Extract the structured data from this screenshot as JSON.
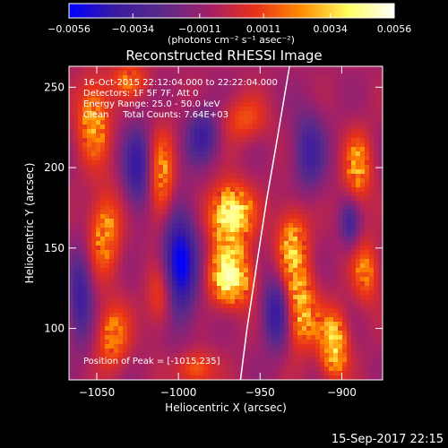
{
  "chart_data": {
    "type": "heatmap",
    "title": "Reconstructed RHESSI Image",
    "xlabel": "Heliocentric X (arcsec)",
    "ylabel": "Heliocentric Y (arcsec)",
    "xlim": [
      -1067,
      -875
    ],
    "ylim": [
      68,
      263
    ],
    "xticks": [
      -1050,
      -1000,
      -950,
      -900
    ],
    "xtick_labels": [
      "−1050",
      "−1000",
      "−950",
      "−900"
    ],
    "yticks": [
      100,
      150,
      200,
      250
    ],
    "ytick_labels": [
      "100",
      "150",
      "200",
      "250"
    ],
    "colorbar": {
      "range": [
        -0.0056,
        0.0056
      ],
      "ticks": [
        -0.0056,
        -0.0034,
        -0.0011,
        0.0011,
        0.0034,
        0.0056
      ],
      "tick_labels": [
        "−0.0056",
        "−0.0034",
        "−0.0011",
        "0.0011",
        "0.0034",
        "0.0056"
      ],
      "units_label": "(photons cm⁻² s⁻¹ asec⁻²)",
      "colormap": [
        "#0000ff",
        "#3a1aa0",
        "#5a2a8a",
        "#a0206a",
        "#e8301a",
        "#ff8c00",
        "#ffff60",
        "#ffffff"
      ]
    },
    "info_lines": [
      "16-Oct-2015 22:12:04.000 to 22:22:04.000",
      "Detectors: 1F 5F 7F, Att 0",
      "Energy Range: 25.0 - 50.0 keV",
      "Clean     Total Counts: 7.64E+03"
    ],
    "peak_label": "Position of Peak = [-1015,235]",
    "peak": {
      "x": -1015,
      "y": 235
    },
    "limb_curve": [
      [
        -962,
        68
      ],
      [
        -958,
        100
      ],
      [
        -952,
        140
      ],
      [
        -946,
        180
      ],
      [
        -940,
        215
      ],
      [
        -932,
        263
      ]
    ],
    "sources": [
      {
        "x": -968,
        "y": 170,
        "sx": 9,
        "sy": 13,
        "amp": 1.0
      },
      {
        "x": -968,
        "y": 132,
        "sx": 9,
        "sy": 12,
        "amp": 0.95
      },
      {
        "x": -1010,
        "y": 190,
        "sx": 6,
        "sy": 22,
        "amp": 0.55
      },
      {
        "x": -1010,
        "y": 120,
        "sx": 6,
        "sy": 15,
        "amp": 0.5
      },
      {
        "x": -1052,
        "y": 230,
        "sx": 7,
        "sy": 18,
        "amp": 0.6
      },
      {
        "x": -1045,
        "y": 160,
        "sx": 7,
        "sy": 18,
        "amp": 0.55
      },
      {
        "x": -1040,
        "y": 95,
        "sx": 7,
        "sy": 14,
        "amp": 0.5
      },
      {
        "x": -930,
        "y": 150,
        "sx": 7,
        "sy": 18,
        "amp": 0.6
      },
      {
        "x": -925,
        "y": 110,
        "sx": 7,
        "sy": 16,
        "amp": 0.65
      },
      {
        "x": -905,
        "y": 90,
        "sx": 6,
        "sy": 14,
        "amp": 0.8
      },
      {
        "x": -890,
        "y": 200,
        "sx": 6,
        "sy": 15,
        "amp": 0.55
      },
      {
        "x": -885,
        "y": 135,
        "sx": 6,
        "sy": 14,
        "amp": 0.45
      },
      {
        "x": -990,
        "y": 75,
        "sx": 8,
        "sy": 8,
        "amp": 0.45
      },
      {
        "x": -960,
        "y": 230,
        "sx": 10,
        "sy": 10,
        "amp": 0.35
      },
      {
        "x": -1030,
        "y": 255,
        "sx": 8,
        "sy": 8,
        "amp": 0.4
      }
    ],
    "negatives": [
      {
        "x": -1000,
        "y": 140,
        "sx": 8,
        "sy": 25,
        "amp": 0.9
      },
      {
        "x": -1025,
        "y": 200,
        "sx": 6,
        "sy": 18,
        "amp": 0.6
      },
      {
        "x": -985,
        "y": 220,
        "sx": 7,
        "sy": 12,
        "amp": 0.55
      },
      {
        "x": -940,
        "y": 110,
        "sx": 6,
        "sy": 16,
        "amp": 0.65
      },
      {
        "x": -920,
        "y": 210,
        "sx": 7,
        "sy": 18,
        "amp": 0.5
      },
      {
        "x": -1060,
        "y": 120,
        "sx": 5,
        "sy": 20,
        "amp": 0.55
      },
      {
        "x": -895,
        "y": 165,
        "sx": 4,
        "sy": 10,
        "amp": 0.45
      }
    ]
  },
  "footer_timestamp": "15-Sep-2017 22:15"
}
